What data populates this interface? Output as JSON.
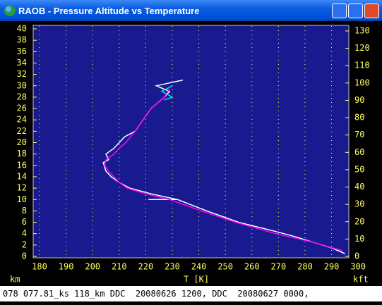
{
  "window": {
    "title": "RAOB - Pressure Altitude vs Temperature"
  },
  "chart_data": {
    "type": "line",
    "x_label": "T  [K]",
    "y_label": "km",
    "y2_label": "kft",
    "xlim": [
      177.6,
      296.5
    ],
    "xticks": [
      180,
      190,
      200,
      210,
      220,
      230,
      240,
      250,
      260,
      270,
      280,
      290,
      300
    ],
    "ylim": [
      0,
      40
    ],
    "yticks": [
      0,
      2,
      4,
      6,
      8,
      10,
      12,
      14,
      16,
      18,
      20,
      22,
      24,
      26,
      28,
      30,
      32,
      34,
      36,
      38,
      40
    ],
    "y2lim": [
      0,
      131.2
    ],
    "y2ticks": [
      0,
      10,
      20,
      30,
      40,
      50,
      60,
      70,
      80,
      90,
      100,
      110,
      120,
      130
    ],
    "grid": "x",
    "series": [
      {
        "color": "#ffffff",
        "x": [
          295,
          290,
          283,
          276,
          268,
          255,
          243,
          232,
          221,
          232,
          222,
          214,
          210,
          207,
          205,
          204,
          206,
          205,
          208,
          210,
          212,
          216,
          219,
          222,
          227,
          229,
          224,
          229,
          234
        ],
        "y": [
          0.5,
          1.5,
          2.5,
          3.5,
          4.5,
          6,
          8,
          10,
          10,
          10,
          11,
          12,
          13,
          14,
          15,
          16.5,
          17,
          18,
          19,
          20,
          21,
          22,
          24,
          26,
          28,
          29,
          30,
          30.5,
          31
        ]
      },
      {
        "color": "#00e0e0",
        "x": [
          227,
          230,
          226,
          230
        ],
        "y": [
          27.5,
          28,
          29,
          30
        ]
      },
      {
        "color": "#ff00ff",
        "x": [
          294,
          283,
          269,
          254,
          241,
          229,
          220,
          213,
          210,
          208,
          206,
          204.5,
          205,
          208,
          210,
          212.5,
          216,
          219,
          222,
          227,
          229
        ],
        "y": [
          1,
          2.5,
          4,
          6,
          8,
          10,
          11,
          12,
          13,
          14,
          15,
          16,
          17,
          18,
          19,
          20,
          22,
          24,
          26,
          28,
          29.5
        ]
      }
    ]
  },
  "status": "078 077.81_ks 118_km DDC  20080626 1200, DDC  20080627 0000,"
}
